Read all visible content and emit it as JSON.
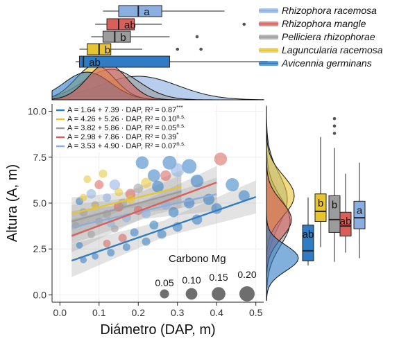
{
  "chart_data": {
    "type": "scatter",
    "xlabel": "Diámetro (DAP, m)",
    "ylabel": "Altura (A, m)",
    "xlim": [
      -0.02,
      0.52
    ],
    "ylim": [
      -0.4,
      10.4
    ],
    "x_ticks": [
      "0.0",
      "0.1",
      "0.2",
      "0.3",
      "0.4",
      "0.5"
    ],
    "y_ticks": [
      "0.0",
      "2.5",
      "5.0",
      "7.5",
      "10.0"
    ],
    "x_tick_values": [
      0,
      0.1,
      0.2,
      0.3,
      0.4,
      0.5
    ],
    "y_tick_values": [
      0,
      2.5,
      5,
      7.5,
      10
    ],
    "grid": true,
    "legend_position": "top-right",
    "series": [
      {
        "name": "Rhizophora racemosa",
        "color": "#8aaee0",
        "intercept": 3.53,
        "slope": 4.9,
        "fit_x": [
          0.03,
          0.4
        ],
        "equation": "A = 3.53 + 4.90 · DAP, R² = 0.07",
        "significance": "n.s.",
        "box": {
          "letter": "a",
          "dap": [
            0.11,
            0.15,
            0.2,
            0.26,
            0.42
          ],
          "height": [
            2.0,
            3.6,
            4.2,
            5.1,
            7.2
          ],
          "outliers_height": []
        }
      },
      {
        "name": "Rhizophora mangle",
        "color": "#d9605a",
        "intercept": 2.98,
        "slope": 7.86,
        "fit_x": [
          0.03,
          0.4
        ],
        "equation": "A = 2.98 + 7.86 · DAP, R² = 0.39",
        "significance": "*",
        "box": {
          "letter": "ab",
          "dap": [
            0.09,
            0.12,
            0.15,
            0.19,
            0.26
          ],
          "height": [
            2.3,
            3.2,
            3.75,
            4.5,
            6.6
          ],
          "outliers_height": []
        }
      },
      {
        "name": "Pelliciera rhizophorae",
        "color": "#9c9c9c",
        "intercept": 3.82,
        "slope": 5.86,
        "fit_x": [
          0.03,
          0.31
        ],
        "equation": "A = 3.82 + 5.86 · DAP, R² = 0.05",
        "significance": "n.s.",
        "box": {
          "letter": "b",
          "dap": [
            0.08,
            0.11,
            0.14,
            0.18,
            0.28
          ],
          "height": [
            1.8,
            3.4,
            4.1,
            5.4,
            8.0
          ],
          "outliers_height": [
            8.8,
            9.2,
            9.6
          ]
        }
      },
      {
        "name": "Laguncularia racemosa",
        "color": "#e8c430",
        "intercept": 4.26,
        "slope": 5.26,
        "fit_x": [
          0.03,
          0.31
        ],
        "equation": "A = 4.26 + 5.26 · DAP, R² = 0.10",
        "significance": "n.s.",
        "box": {
          "letter": "b",
          "dap": [
            0.05,
            0.07,
            0.1,
            0.13,
            0.21
          ],
          "height": [
            2.6,
            4.0,
            4.55,
            5.5,
            8.6
          ],
          "outliers_height": []
        }
      },
      {
        "name": "Avicennia germinans",
        "color": "#2f7cc4",
        "intercept": 1.64,
        "slope": 7.39,
        "fit_x": [
          0.03,
          0.5
        ],
        "equation": "A = 1.64 + 7.39 · DAP, R² = 0.87",
        "significance": "***",
        "box": {
          "letter": "ab",
          "dap": [
            0.04,
            0.05,
            0.06,
            0.28,
            0.53
          ],
          "height": [
            1.6,
            1.85,
            2.4,
            3.8,
            5.3
          ],
          "outliers_height": []
        }
      }
    ],
    "points": [
      [
        0.33,
        7.0,
        0.18,
        4
      ],
      [
        0.28,
        7.2,
        0.16,
        4
      ],
      [
        0.21,
        7.2,
        0.13,
        4
      ],
      [
        0.3,
        6.8,
        0.15,
        0
      ],
      [
        0.24,
        6.5,
        0.12,
        4
      ],
      [
        0.35,
        6.2,
        0.13,
        4
      ],
      [
        0.44,
        6.0,
        0.14,
        4
      ],
      [
        0.14,
        6.0,
        0.08,
        0
      ],
      [
        0.25,
        5.9,
        0.1,
        4
      ],
      [
        0.08,
        5.5,
        0.06,
        0
      ],
      [
        0.12,
        5.3,
        0.04,
        0
      ],
      [
        0.05,
        5.1,
        0.03,
        4
      ],
      [
        0.18,
        5.5,
        0.07,
        1
      ],
      [
        0.1,
        6.0,
        0.05,
        1
      ],
      [
        0.41,
        7.4,
        0.13,
        1
      ],
      [
        0.27,
        6.5,
        0.08,
        1
      ],
      [
        0.15,
        4.8,
        0.06,
        1
      ],
      [
        0.2,
        4.6,
        0.05,
        1
      ],
      [
        0.06,
        4.5,
        0.04,
        2
      ],
      [
        0.09,
        4.9,
        0.03,
        2
      ],
      [
        0.12,
        4.4,
        0.04,
        2
      ],
      [
        0.16,
        5.0,
        0.05,
        2
      ],
      [
        0.2,
        5.8,
        0.06,
        2
      ],
      [
        0.04,
        3.8,
        0.02,
        2
      ],
      [
        0.1,
        4.0,
        0.03,
        2
      ],
      [
        0.14,
        3.6,
        0.03,
        2
      ],
      [
        0.07,
        6.3,
        0.03,
        3
      ],
      [
        0.11,
        6.6,
        0.04,
        3
      ],
      [
        0.15,
        5.6,
        0.04,
        3
      ],
      [
        0.18,
        5.2,
        0.05,
        3
      ],
      [
        0.06,
        5.3,
        0.03,
        3
      ],
      [
        0.09,
        4.8,
        0.02,
        3
      ],
      [
        0.22,
        6.1,
        0.07,
        3
      ],
      [
        0.47,
        5.4,
        0.09,
        4
      ],
      [
        0.4,
        4.7,
        0.08,
        4
      ],
      [
        0.35,
        4.1,
        0.07,
        4
      ],
      [
        0.3,
        3.7,
        0.06,
        4
      ],
      [
        0.26,
        3.3,
        0.05,
        4
      ],
      [
        0.22,
        2.9,
        0.04,
        4
      ],
      [
        0.17,
        2.6,
        0.03,
        4
      ],
      [
        0.13,
        2.3,
        0.03,
        4
      ],
      [
        0.09,
        2.1,
        0.02,
        4
      ],
      [
        0.06,
        1.9,
        0.02,
        4
      ],
      [
        0.05,
        2.7,
        0.02,
        4
      ],
      [
        0.19,
        3.4,
        0.04,
        4
      ],
      [
        0.24,
        3.8,
        0.05,
        4
      ],
      [
        0.29,
        4.5,
        0.07,
        4
      ],
      [
        0.33,
        5.0,
        0.08,
        4
      ],
      [
        0.38,
        5.2,
        0.09,
        4
      ],
      [
        0.13,
        3.9,
        0.04,
        0
      ],
      [
        0.17,
        4.2,
        0.05,
        0
      ],
      [
        0.22,
        4.4,
        0.05,
        0
      ],
      [
        0.27,
        4.9,
        0.06,
        0
      ],
      [
        0.08,
        3.3,
        0.03,
        2
      ],
      [
        0.12,
        2.8,
        0.03,
        1
      ],
      [
        0.16,
        3.1,
        0.04,
        1
      ]
    ],
    "size_legend": {
      "title": "Carbono Mg",
      "values": [
        0.05,
        0.1,
        0.15,
        0.2
      ],
      "labels": [
        "0.05",
        "0.10",
        "0.15",
        "0.20"
      ]
    }
  }
}
